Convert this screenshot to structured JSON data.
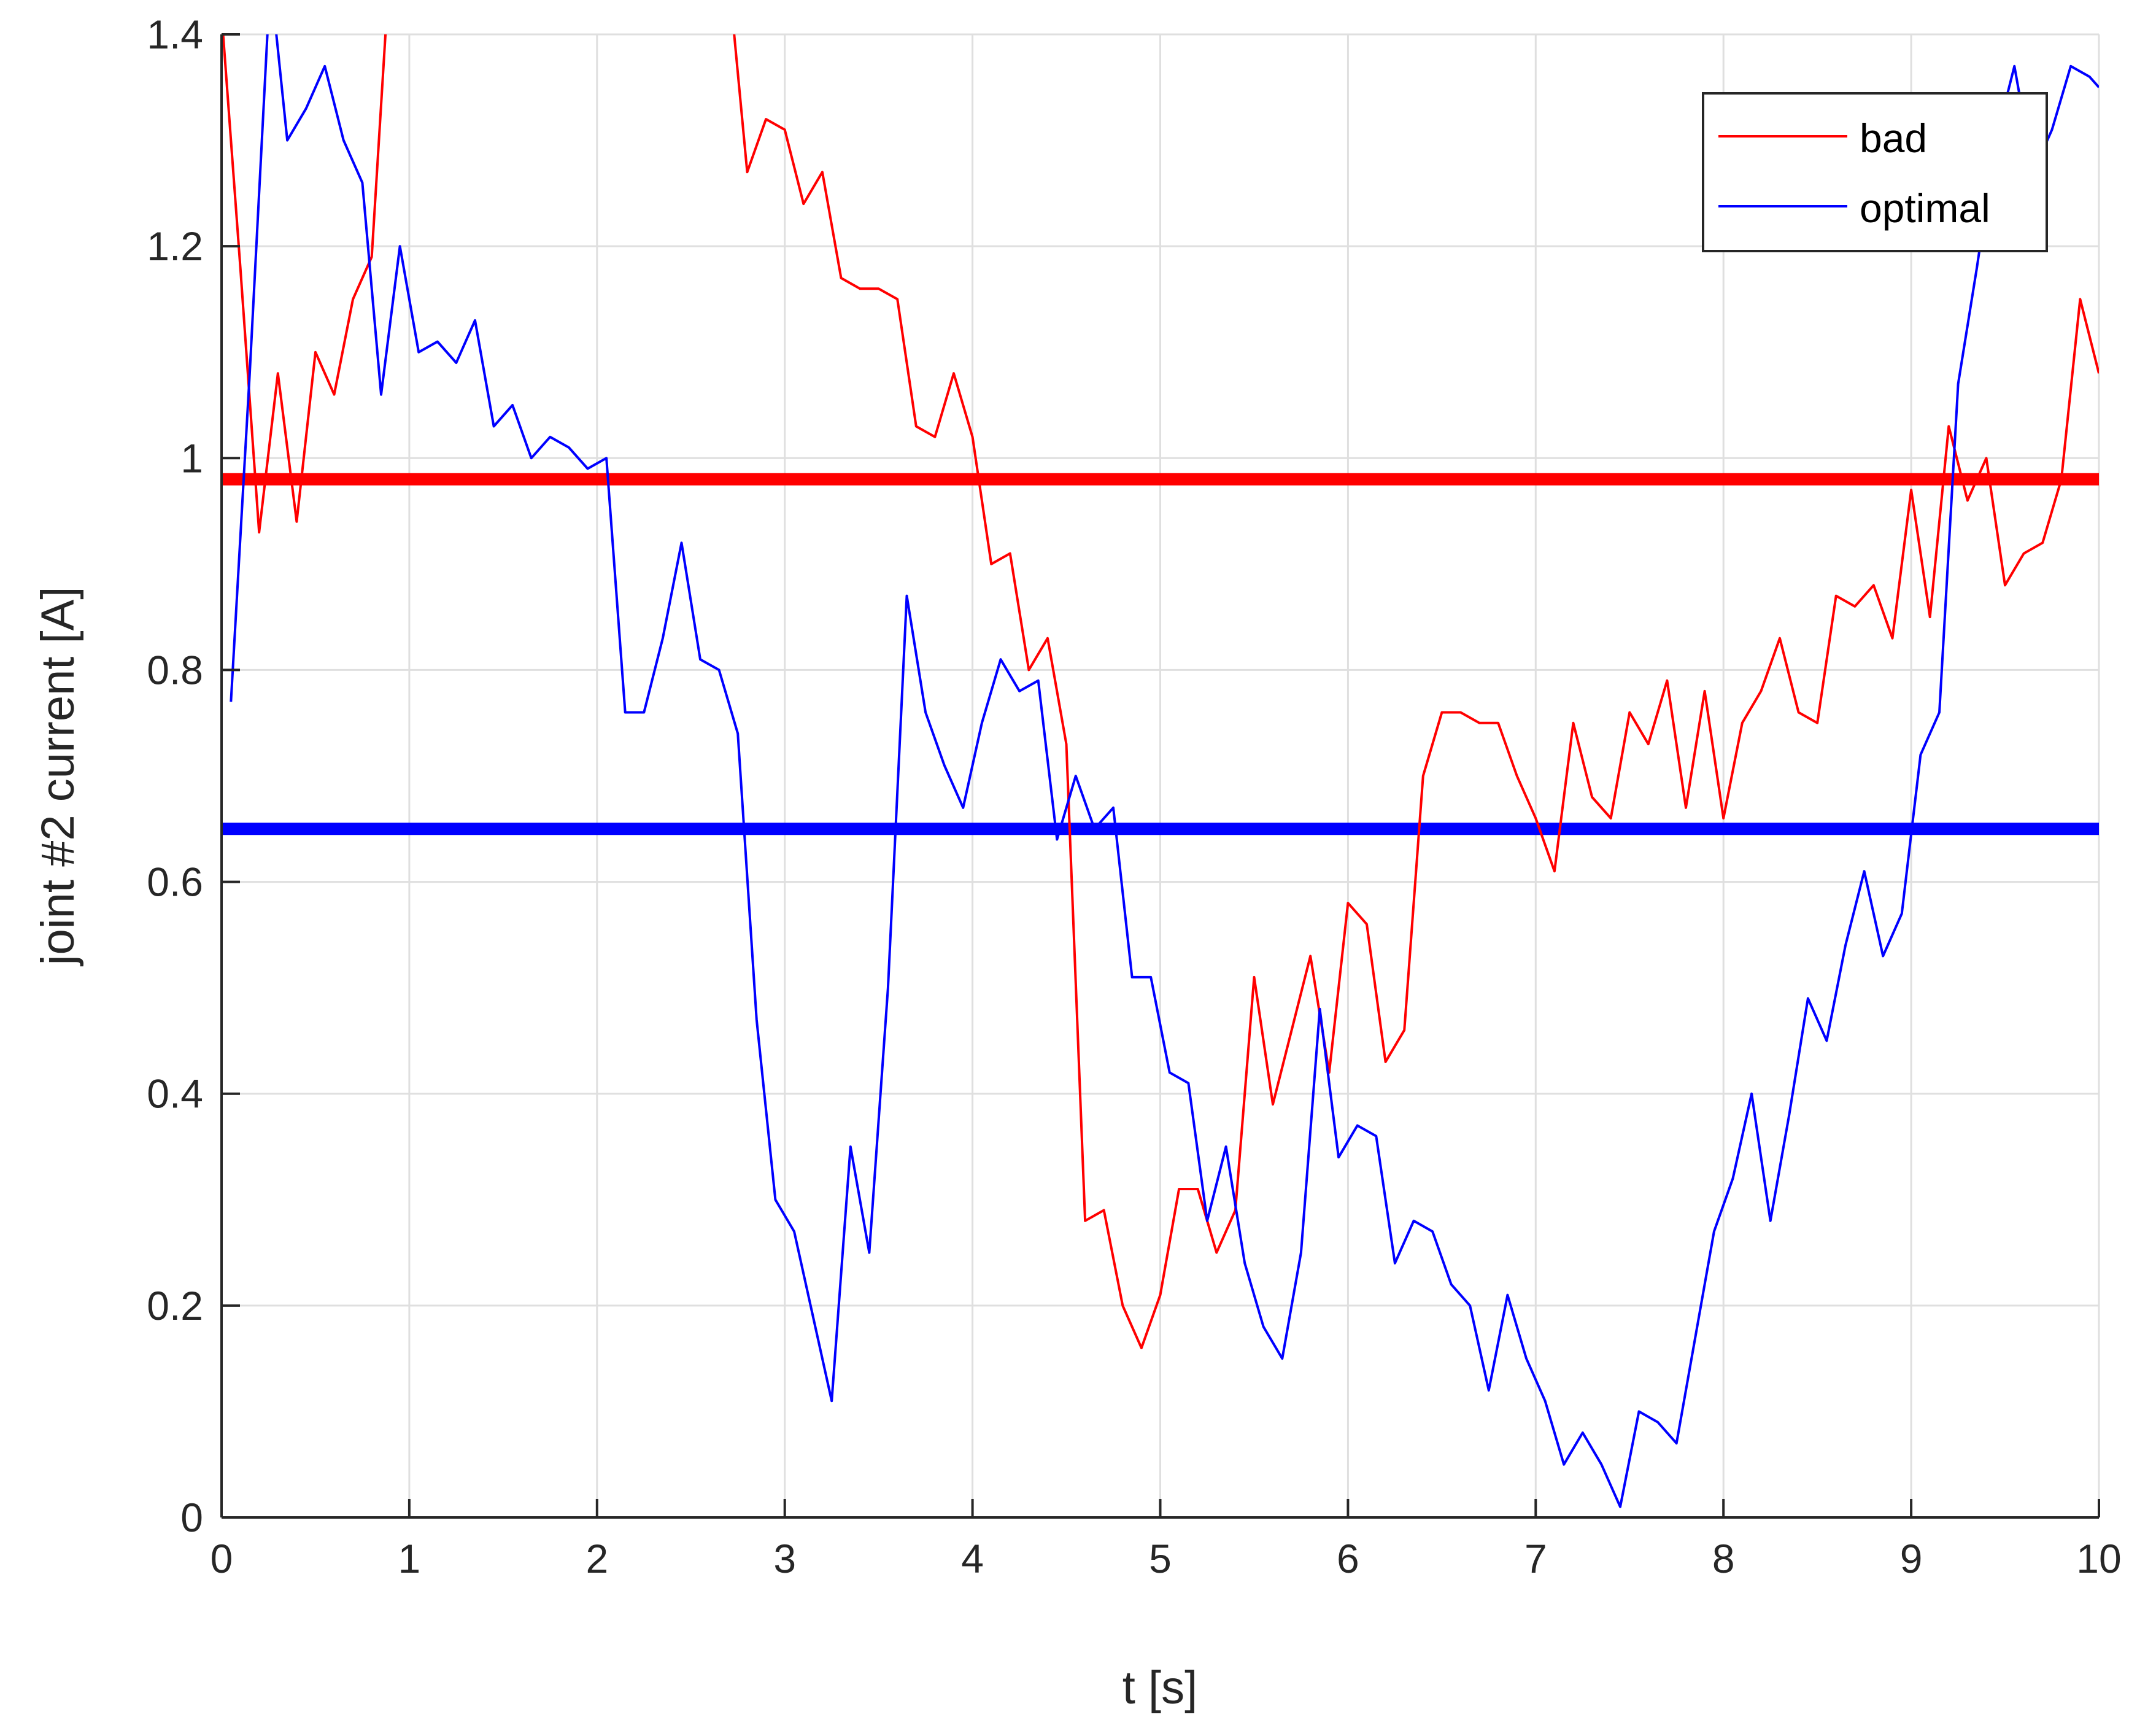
{
  "chart_data": {
    "type": "line",
    "xlabel": "t [s]",
    "ylabel": "joint #2 current [A]",
    "xlim": [
      0,
      10
    ],
    "ylim": [
      0,
      1.4
    ],
    "xticks": [
      "0",
      "1",
      "2",
      "3",
      "4",
      "5",
      "6",
      "7",
      "8",
      "9",
      "10"
    ],
    "yticks": [
      "0",
      "0.2",
      "0.4",
      "0.6",
      "0.8",
      "1",
      "1.2",
      "1.4"
    ],
    "grid": true,
    "legend": {
      "position": "top-right",
      "entries": [
        "bad",
        "optimal"
      ]
    },
    "reference_lines": [
      {
        "series": "bad",
        "y": 0.98,
        "color": "#ff0000"
      },
      {
        "series": "optimal",
        "y": 0.65,
        "color": "#0000ff"
      }
    ],
    "series": [
      {
        "name": "bad",
        "color": "#ff0000",
        "points": [
          [
            0.0,
            1.42
          ],
          [
            0.1,
            1.18
          ],
          [
            0.2,
            0.93
          ],
          [
            0.3,
            1.08
          ],
          [
            0.4,
            0.94
          ],
          [
            0.5,
            1.1
          ],
          [
            0.6,
            1.06
          ],
          [
            0.7,
            1.15
          ],
          [
            0.8,
            1.19
          ],
          [
            0.88,
            1.42
          ],
          [
            2.72,
            1.42
          ],
          [
            2.8,
            1.27
          ],
          [
            2.9,
            1.32
          ],
          [
            3.0,
            1.31
          ],
          [
            3.1,
            1.24
          ],
          [
            3.2,
            1.27
          ],
          [
            3.3,
            1.17
          ],
          [
            3.4,
            1.16
          ],
          [
            3.5,
            1.16
          ],
          [
            3.6,
            1.15
          ],
          [
            3.7,
            1.03
          ],
          [
            3.8,
            1.02
          ],
          [
            3.9,
            1.08
          ],
          [
            4.0,
            1.02
          ],
          [
            4.1,
            0.9
          ],
          [
            4.2,
            0.91
          ],
          [
            4.3,
            0.8
          ],
          [
            4.4,
            0.83
          ],
          [
            4.5,
            0.73
          ],
          [
            4.6,
            0.28
          ],
          [
            4.7,
            0.29
          ],
          [
            4.8,
            0.2
          ],
          [
            4.9,
            0.16
          ],
          [
            5.0,
            0.21
          ],
          [
            5.1,
            0.31
          ],
          [
            5.2,
            0.31
          ],
          [
            5.3,
            0.25
          ],
          [
            5.4,
            0.29
          ],
          [
            5.5,
            0.51
          ],
          [
            5.6,
            0.39
          ],
          [
            5.7,
            0.46
          ],
          [
            5.8,
            0.53
          ],
          [
            5.9,
            0.42
          ],
          [
            6.0,
            0.58
          ],
          [
            6.1,
            0.56
          ],
          [
            6.2,
            0.43
          ],
          [
            6.3,
            0.46
          ],
          [
            6.4,
            0.7
          ],
          [
            6.5,
            0.76
          ],
          [
            6.6,
            0.76
          ],
          [
            6.7,
            0.75
          ],
          [
            6.8,
            0.75
          ],
          [
            6.9,
            0.7
          ],
          [
            7.0,
            0.66
          ],
          [
            7.1,
            0.61
          ],
          [
            7.2,
            0.75
          ],
          [
            7.3,
            0.68
          ],
          [
            7.4,
            0.66
          ],
          [
            7.5,
            0.76
          ],
          [
            7.6,
            0.73
          ],
          [
            7.7,
            0.79
          ],
          [
            7.8,
            0.67
          ],
          [
            7.9,
            0.78
          ],
          [
            8.0,
            0.66
          ],
          [
            8.1,
            0.75
          ],
          [
            8.2,
            0.78
          ],
          [
            8.3,
            0.83
          ],
          [
            8.4,
            0.76
          ],
          [
            8.5,
            0.75
          ],
          [
            8.6,
            0.87
          ],
          [
            8.7,
            0.86
          ],
          [
            8.8,
            0.88
          ],
          [
            8.9,
            0.83
          ],
          [
            9.0,
            0.97
          ],
          [
            9.1,
            0.85
          ],
          [
            9.2,
            1.03
          ],
          [
            9.3,
            0.96
          ],
          [
            9.4,
            1.0
          ],
          [
            9.5,
            0.88
          ],
          [
            9.6,
            0.91
          ],
          [
            9.7,
            0.92
          ],
          [
            9.8,
            0.98
          ],
          [
            9.9,
            1.15
          ],
          [
            10.0,
            1.08
          ]
        ]
      },
      {
        "name": "optimal",
        "color": "#0000ff",
        "points": [
          [
            0.05,
            0.77
          ],
          [
            0.15,
            1.08
          ],
          [
            0.25,
            1.42
          ],
          [
            0.28,
            1.42
          ],
          [
            0.35,
            1.3
          ],
          [
            0.45,
            1.33
          ],
          [
            0.55,
            1.37
          ],
          [
            0.65,
            1.3
          ],
          [
            0.75,
            1.26
          ],
          [
            0.85,
            1.06
          ],
          [
            0.95,
            1.2
          ],
          [
            1.05,
            1.1
          ],
          [
            1.15,
            1.11
          ],
          [
            1.25,
            1.09
          ],
          [
            1.35,
            1.13
          ],
          [
            1.45,
            1.03
          ],
          [
            1.55,
            1.05
          ],
          [
            1.65,
            1.0
          ],
          [
            1.75,
            1.02
          ],
          [
            1.85,
            1.01
          ],
          [
            1.95,
            0.99
          ],
          [
            2.05,
            1.0
          ],
          [
            2.15,
            0.76
          ],
          [
            2.25,
            0.76
          ],
          [
            2.35,
            0.83
          ],
          [
            2.45,
            0.92
          ],
          [
            2.55,
            0.81
          ],
          [
            2.65,
            0.8
          ],
          [
            2.75,
            0.74
          ],
          [
            2.85,
            0.47
          ],
          [
            2.95,
            0.3
          ],
          [
            3.05,
            0.27
          ],
          [
            3.15,
            0.19
          ],
          [
            3.25,
            0.11
          ],
          [
            3.35,
            0.35
          ],
          [
            3.45,
            0.25
          ],
          [
            3.55,
            0.5
          ],
          [
            3.65,
            0.87
          ],
          [
            3.75,
            0.76
          ],
          [
            3.85,
            0.71
          ],
          [
            3.95,
            0.67
          ],
          [
            4.05,
            0.75
          ],
          [
            4.15,
            0.81
          ],
          [
            4.25,
            0.78
          ],
          [
            4.35,
            0.79
          ],
          [
            4.45,
            0.64
          ],
          [
            4.55,
            0.7
          ],
          [
            4.65,
            0.65
          ],
          [
            4.75,
            0.67
          ],
          [
            4.85,
            0.51
          ],
          [
            4.95,
            0.51
          ],
          [
            5.05,
            0.42
          ],
          [
            5.15,
            0.41
          ],
          [
            5.25,
            0.28
          ],
          [
            5.35,
            0.35
          ],
          [
            5.45,
            0.24
          ],
          [
            5.55,
            0.18
          ],
          [
            5.65,
            0.15
          ],
          [
            5.75,
            0.25
          ],
          [
            5.85,
            0.48
          ],
          [
            5.95,
            0.34
          ],
          [
            6.05,
            0.37
          ],
          [
            6.15,
            0.36
          ],
          [
            6.25,
            0.24
          ],
          [
            6.35,
            0.28
          ],
          [
            6.45,
            0.27
          ],
          [
            6.55,
            0.22
          ],
          [
            6.65,
            0.2
          ],
          [
            6.75,
            0.12
          ],
          [
            6.85,
            0.21
          ],
          [
            6.95,
            0.15
          ],
          [
            7.05,
            0.11
          ],
          [
            7.15,
            0.05
          ],
          [
            7.25,
            0.08
          ],
          [
            7.35,
            0.05
          ],
          [
            7.45,
            0.01
          ],
          [
            7.55,
            0.1
          ],
          [
            7.65,
            0.09
          ],
          [
            7.75,
            0.07
          ],
          [
            7.85,
            0.17
          ],
          [
            7.95,
            0.27
          ],
          [
            8.05,
            0.32
          ],
          [
            8.15,
            0.4
          ],
          [
            8.25,
            0.28
          ],
          [
            8.35,
            0.38
          ],
          [
            8.45,
            0.49
          ],
          [
            8.55,
            0.45
          ],
          [
            8.65,
            0.54
          ],
          [
            8.75,
            0.61
          ],
          [
            8.85,
            0.53
          ],
          [
            8.95,
            0.57
          ],
          [
            9.05,
            0.72
          ],
          [
            9.15,
            0.76
          ],
          [
            9.25,
            1.07
          ],
          [
            9.35,
            1.18
          ],
          [
            9.45,
            1.3
          ],
          [
            9.55,
            1.37
          ],
          [
            9.65,
            1.27
          ],
          [
            9.75,
            1.31
          ],
          [
            9.85,
            1.37
          ],
          [
            9.95,
            1.36
          ],
          [
            10.0,
            1.35
          ]
        ]
      }
    ]
  }
}
